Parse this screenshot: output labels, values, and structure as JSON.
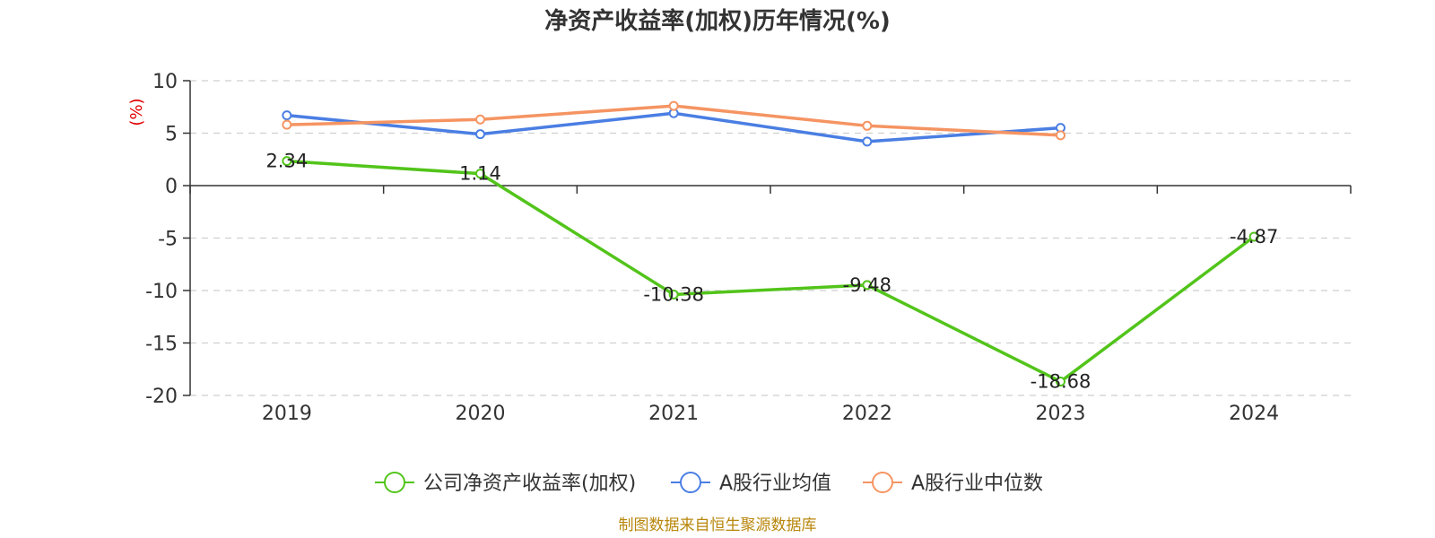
{
  "chart_data": {
    "type": "line",
    "title": "净资产收益率(加权)历年情况(%)",
    "y_unit": "(%)",
    "categories": [
      "2019",
      "2020",
      "2021",
      "2022",
      "2023",
      "2024"
    ],
    "ylim": [
      -20,
      10
    ],
    "yticks": [
      10,
      5,
      0,
      -5,
      -10,
      -15,
      -20
    ],
    "grid": true,
    "legend_position": "bottom",
    "series": [
      {
        "name": "公司净资产收益率(加权)",
        "color": "#52c41a",
        "values": [
          2.34,
          1.14,
          -10.38,
          -9.48,
          -18.68,
          -4.87
        ],
        "labels": [
          "2.34",
          "1.14",
          "-10.38",
          "-9.48",
          "-18.68",
          "-4.87"
        ]
      },
      {
        "name": "A股行业均值",
        "color": "#4a7ee3",
        "values": [
          6.7,
          4.9,
          6.9,
          4.2,
          5.5,
          null
        ]
      },
      {
        "name": "A股行业中位数",
        "color": "#f59462",
        "values": [
          5.8,
          6.3,
          7.6,
          5.7,
          4.8,
          null
        ]
      }
    ]
  },
  "source_note": "制图数据来自恒生聚源数据库"
}
